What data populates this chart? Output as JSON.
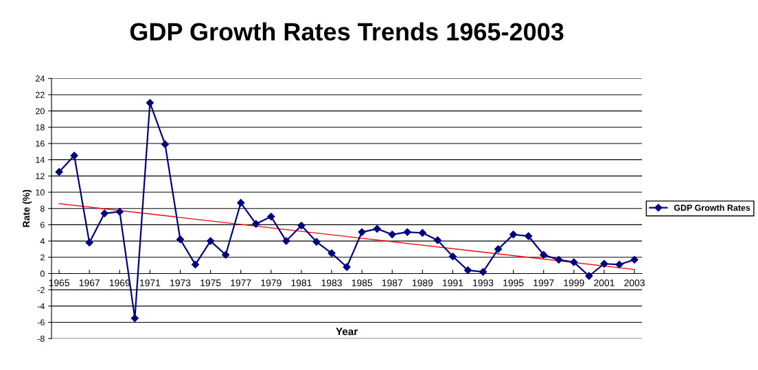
{
  "chart_data": {
    "type": "line",
    "title": "GDP Growth Rates Trends 1965-2003",
    "xlabel": "Year",
    "ylabel": "Rate (%)",
    "x": [
      1965,
      1966,
      1967,
      1968,
      1969,
      1970,
      1971,
      1972,
      1973,
      1974,
      1975,
      1976,
      1977,
      1978,
      1979,
      1980,
      1981,
      1982,
      1983,
      1984,
      1985,
      1986,
      1987,
      1988,
      1989,
      1990,
      1991,
      1992,
      1993,
      1994,
      1995,
      1996,
      1997,
      1998,
      1999,
      2000,
      2001,
      2002,
      2003
    ],
    "series": [
      {
        "name": "GDP Growth Rates",
        "color": "#000080",
        "marker": "diamond",
        "values": [
          12.5,
          14.5,
          3.8,
          7.4,
          7.6,
          -5.5,
          21.0,
          15.9,
          4.2,
          1.1,
          4.0,
          2.3,
          8.7,
          6.1,
          7.0,
          4.0,
          5.9,
          3.9,
          2.5,
          0.8,
          5.1,
          5.5,
          4.8,
          5.1,
          5.0,
          4.1,
          2.1,
          0.4,
          0.2,
          3.0,
          4.8,
          4.6,
          2.3,
          1.7,
          1.4,
          -0.3,
          1.2,
          1.1,
          1.7
        ]
      },
      {
        "type": "line",
        "color": "#ff0000",
        "marker": "none",
        "x": [
          1965,
          2003
        ],
        "values": [
          8.6,
          0.5
        ]
      }
    ],
    "xlim": [
      1964.5,
      2003.5
    ],
    "xticks": [
      1965,
      1967,
      1969,
      1971,
      1973,
      1975,
      1977,
      1979,
      1981,
      1983,
      1985,
      1987,
      1989,
      1991,
      1993,
      1995,
      1997,
      1999,
      2001,
      2003
    ],
    "ylim": [
      -8,
      24
    ],
    "yticks": [
      -8,
      -6,
      -4,
      -2,
      0,
      2,
      4,
      6,
      8,
      10,
      12,
      14,
      16,
      18,
      20,
      22,
      24
    ],
    "grid": "y",
    "legend": "right"
  }
}
